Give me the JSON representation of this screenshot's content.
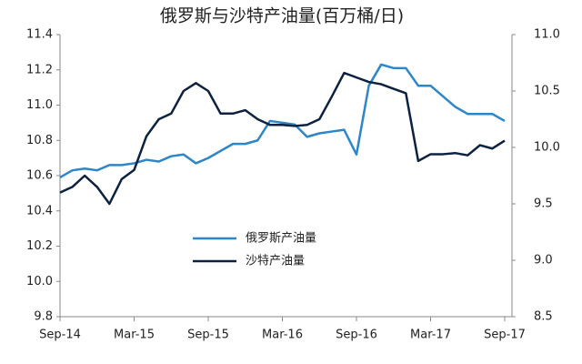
{
  "chart_data": {
    "type": "line",
    "title": "俄罗斯与沙特产油量(百万桶/日)",
    "categories": [
      "Sep-14",
      null,
      null,
      null,
      null,
      null,
      "Mar-15",
      null,
      null,
      null,
      null,
      null,
      "Sep-15",
      null,
      null,
      null,
      null,
      null,
      "Mar-16",
      null,
      null,
      null,
      null,
      null,
      "Sep-16",
      null,
      null,
      null,
      null,
      null,
      "Mar-17",
      null,
      null,
      null,
      null,
      null,
      "Sep-17"
    ],
    "ylim": [
      9.8,
      11.4
    ],
    "yticks": [
      9.8,
      {
        "value": 10,
        "label": "10.0"
      },
      10.2,
      10.4,
      10.6,
      10.8,
      {
        "value": 11,
        "label": "11.0"
      },
      11.2,
      11.4
    ],
    "y2lim": [
      8.5,
      11.0
    ],
    "y2ticks": [
      8.5,
      {
        "value": 9,
        "label": "9.0"
      },
      9.5,
      {
        "value": 10,
        "label": "10.0"
      },
      10.5,
      {
        "value": 11,
        "label": "11.0"
      }
    ],
    "legend": "center",
    "series": [
      {
        "name": "俄罗斯产油量",
        "color": "#2e86c8",
        "values": [
          10.59,
          10.63,
          10.64,
          10.63,
          10.66,
          10.66,
          10.67,
          10.69,
          10.68,
          10.71,
          10.72,
          10.67,
          10.7,
          10.74,
          10.78,
          10.78,
          10.8,
          10.91,
          10.9,
          10.89,
          10.82,
          10.84,
          10.85,
          10.86,
          10.72,
          11.11,
          11.23,
          11.21,
          11.21,
          11.11,
          11.11,
          11.05,
          10.99,
          10.95,
          10.95,
          10.95,
          10.91
        ]
      },
      {
        "name": "沙特产油量",
        "color": "#0d2240",
        "axis": "y2",
        "values": [
          9.6,
          9.65,
          9.75,
          9.65,
          9.5,
          9.72,
          9.8,
          10.1,
          10.25,
          10.3,
          10.5,
          10.57,
          10.5,
          10.3,
          10.3,
          10.33,
          10.25,
          10.2,
          10.2,
          10.19,
          10.2,
          10.25,
          10.45,
          10.66,
          10.62,
          10.58,
          10.56,
          10.52,
          10.48,
          9.88,
          9.94,
          9.94,
          9.95,
          9.93,
          10.02,
          9.99,
          10.06
        ]
      }
    ]
  }
}
